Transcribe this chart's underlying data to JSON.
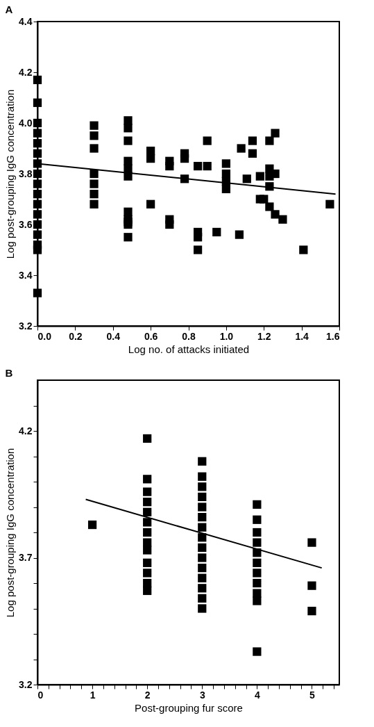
{
  "chart_data": [
    {
      "type": "scatter",
      "title": "A",
      "xlabel": "Log no. of attacks initiated",
      "ylabel": "Log post-grouping IgG concentration",
      "marker": "square",
      "xlim": [
        0,
        1.6
      ],
      "ylim": [
        3.2,
        4.4
      ],
      "xticks": [
        {
          "value": 0,
          "label": "0.0"
        },
        0.2,
        0.4,
        0.6,
        0.8,
        {
          "value": 1,
          "label": "1.0"
        },
        1.2,
        1.4,
        1.6
      ],
      "yticks": [
        3.2,
        3.4,
        3.6,
        3.8,
        {
          "value": 4,
          "label": "4.0"
        },
        4.2,
        4.4
      ],
      "series": [
        {
          "color": "#000000",
          "x": [
            0,
            0,
            0,
            0,
            0,
            0,
            0,
            0,
            0,
            0,
            0,
            0,
            0,
            0,
            0,
            0,
            0,
            0.3,
            0.3,
            0.3,
            0.3,
            0.3,
            0.3,
            0.3,
            0.48,
            0.48,
            0.48,
            0.48,
            0.48,
            0.48,
            0.48,
            0.48,
            0.48,
            0.48,
            0.48,
            0.6,
            0.6,
            0.6,
            0.7,
            0.7,
            0.7,
            0.7,
            0.78,
            0.78,
            0.78,
            0.85,
            0.85,
            0.85,
            0.85,
            0.9,
            0.9,
            0.95,
            1,
            1,
            1,
            1,
            1.07,
            1.08,
            1.11,
            1.14,
            1.14,
            1.18,
            1.18,
            1.2,
            1.23,
            1.23,
            1.23,
            1.23,
            1.23,
            1.26,
            1.26,
            1.26,
            1.3,
            1.41,
            1.55
          ],
          "values": [
            4.17,
            4.08,
            4,
            3.96,
            3.92,
            3.88,
            3.84,
            3.8,
            3.76,
            3.72,
            3.68,
            3.64,
            3.6,
            3.56,
            3.52,
            3.5,
            3.33,
            3.99,
            3.95,
            3.9,
            3.8,
            3.76,
            3.72,
            3.68,
            4.01,
            3.98,
            3.93,
            3.85,
            3.82,
            3.79,
            3.65,
            3.62,
            3.6,
            3.55,
            3.61,
            3.89,
            3.86,
            3.68,
            3.85,
            3.83,
            3.62,
            3.6,
            3.88,
            3.86,
            3.78,
            3.83,
            3.57,
            3.55,
            3.5,
            3.93,
            3.83,
            3.57,
            3.84,
            3.8,
            3.77,
            3.74,
            3.56,
            3.9,
            3.78,
            3.93,
            3.88,
            3.79,
            3.7,
            3.7,
            3.93,
            3.82,
            3.79,
            3.75,
            3.67,
            3.96,
            3.8,
            3.64,
            3.62,
            3.5,
            3.68
          ]
        },
        {
          "type": "line",
          "marker": "none",
          "color": "#000000",
          "x": [
            0,
            1.58
          ],
          "values": [
            3.84,
            3.72
          ]
        }
      ]
    },
    {
      "type": "scatter",
      "title": "B",
      "xlabel": "Post-grouping fur score",
      "ylabel": "Log post-grouping IgG concentration",
      "marker": "square",
      "xlim": [
        0,
        5.5
      ],
      "ylim": [
        3.2,
        4.4
      ],
      "xticks": [
        0,
        {
          "value": 0.2,
          "label": null
        },
        {
          "value": 0.4,
          "label": null
        },
        {
          "value": 0.6,
          "label": null
        },
        {
          "value": 0.8,
          "label": null
        },
        1,
        {
          "value": 1.2,
          "label": null
        },
        {
          "value": 1.4,
          "label": null
        },
        {
          "value": 1.6,
          "label": null
        },
        {
          "value": 1.8,
          "label": null
        },
        2,
        {
          "value": 2.2,
          "label": null
        },
        {
          "value": 2.4,
          "label": null
        },
        {
          "value": 2.6,
          "label": null
        },
        {
          "value": 2.8,
          "label": null
        },
        3,
        {
          "value": 3.2,
          "label": null
        },
        {
          "value": 3.4,
          "label": null
        },
        {
          "value": 3.6,
          "label": null
        },
        {
          "value": 3.8,
          "label": null
        },
        4,
        {
          "value": 4.2,
          "label": null
        },
        {
          "value": 4.4,
          "label": null
        },
        {
          "value": 4.6,
          "label": null
        },
        {
          "value": 4.8,
          "label": null
        },
        5,
        {
          "value": 5.2,
          "label": null
        },
        {
          "value": 5.4,
          "label": null
        }
      ],
      "yticks": [
        3.2,
        {
          "value": 3.3,
          "label": null
        },
        {
          "value": 3.4,
          "label": null
        },
        {
          "value": 3.5,
          "label": null
        },
        {
          "value": 3.6,
          "label": null
        },
        3.7,
        {
          "value": 3.8,
          "label": null
        },
        {
          "value": 3.9,
          "label": null
        },
        {
          "value": 4,
          "label": null
        },
        {
          "value": 4.1,
          "label": null
        },
        4.2,
        {
          "value": 4.3,
          "label": null
        }
      ],
      "series": [
        {
          "color": "#000000",
          "x": [
            1,
            2,
            2,
            2,
            2,
            2,
            2,
            2,
            2,
            2,
            2,
            2,
            2,
            2,
            3,
            3,
            3,
            3,
            3,
            3,
            3,
            3,
            3,
            3,
            3,
            3,
            3,
            3,
            3,
            4,
            4,
            4,
            4,
            4,
            4,
            4,
            4,
            4,
            4,
            4,
            5,
            5,
            5
          ],
          "values": [
            3.83,
            4.17,
            4.01,
            3.96,
            3.92,
            3.88,
            3.84,
            3.8,
            3.76,
            3.73,
            3.68,
            3.64,
            3.6,
            3.57,
            4.08,
            4.02,
            3.98,
            3.94,
            3.9,
            3.86,
            3.82,
            3.78,
            3.74,
            3.7,
            3.66,
            3.62,
            3.58,
            3.54,
            3.5,
            3.91,
            3.85,
            3.8,
            3.76,
            3.72,
            3.68,
            3.64,
            3.6,
            3.56,
            3.53,
            3.33,
            3.76,
            3.59,
            3.49
          ]
        },
        {
          "type": "line",
          "marker": "none",
          "color": "#000000",
          "x": [
            0.88,
            5.18
          ],
          "values": [
            3.93,
            3.66
          ]
        }
      ]
    }
  ]
}
